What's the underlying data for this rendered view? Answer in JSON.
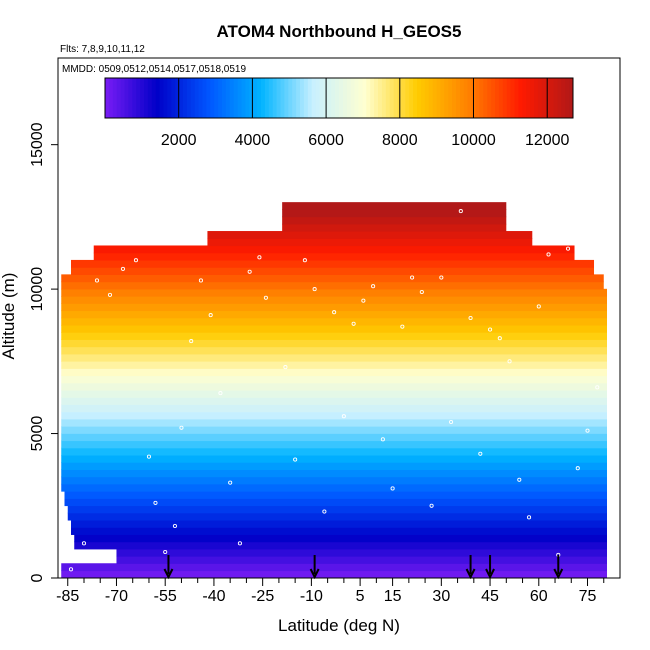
{
  "figure": {
    "title": "ATOM4 Northbound H_GEOS5",
    "flights_note": "Flts: 7,8,9,10,11,12",
    "dates_note": "MMDD: 0509,0512,0514,0517,0518,0519"
  },
  "chart_data": {
    "type": "heatmap",
    "title": "ATOM4 Northbound H_GEOS5",
    "xlabel": "Latitude (deg N)",
    "ylabel": "Altitude (m)",
    "xlim": [
      -88,
      85
    ],
    "ylim": [
      0,
      18000
    ],
    "x_ticks": [
      -85,
      -70,
      -55,
      -40,
      -25,
      -10,
      5,
      15,
      30,
      45,
      60,
      75
    ],
    "x_minor_ticks": [
      -80,
      -75,
      -65,
      -60,
      -50,
      -45,
      -35,
      -30,
      -20,
      -15,
      -5,
      0,
      10,
      20,
      25,
      35,
      40,
      50,
      55,
      65,
      70,
      80
    ],
    "y_ticks": [
      0,
      5000,
      10000,
      15000
    ],
    "colorbar": {
      "min": 0,
      "max": 12700,
      "ticks": [
        2000,
        4000,
        6000,
        8000,
        10000,
        12000
      ],
      "colors": [
        "#7a1cf5",
        "#0000c8",
        "#0056ff",
        "#00b4ff",
        "#c8f0ff",
        "#ffffd0",
        "#ffcc00",
        "#ff8000",
        "#ff1a00",
        "#b01818"
      ]
    },
    "field_extent": [
      {
        "alt": 0,
        "lat_min": -87,
        "lat_max": 81
      },
      {
        "alt": 500,
        "lat_min": -70,
        "lat_max": 81
      },
      {
        "alt": 1000,
        "lat_min": -83,
        "lat_max": 81
      },
      {
        "alt": 1500,
        "lat_min": -84,
        "lat_max": 81
      },
      {
        "alt": 2000,
        "lat_min": -85,
        "lat_max": 81
      },
      {
        "alt": 2500,
        "lat_min": -86,
        "lat_max": 81
      },
      {
        "alt": 3000,
        "lat_min": -87,
        "lat_max": 81
      },
      {
        "alt": 9500,
        "lat_min": -87,
        "lat_max": 81
      },
      {
        "alt": 10000,
        "lat_min": -87,
        "lat_max": 80
      },
      {
        "alt": 10500,
        "lat_min": -84,
        "lat_max": 77
      },
      {
        "alt": 11000,
        "lat_min": -77,
        "lat_max": 71
      },
      {
        "alt": 11500,
        "lat_min": -42,
        "lat_max": 58
      },
      {
        "alt": 12000,
        "lat_min": -19,
        "lat_max": 50
      },
      {
        "alt": 12500,
        "lat_min": -19,
        "lat_max": 50
      }
    ],
    "flight_track_samples": [
      {
        "lat": -84,
        "alt": 300
      },
      {
        "lat": -80,
        "alt": 1200
      },
      {
        "lat": -76,
        "alt": 10300
      },
      {
        "lat": -72,
        "alt": 9800
      },
      {
        "lat": -68,
        "alt": 10700
      },
      {
        "lat": -64,
        "alt": 11000
      },
      {
        "lat": -60,
        "alt": 4200
      },
      {
        "lat": -58,
        "alt": 2600
      },
      {
        "lat": -55,
        "alt": 900
      },
      {
        "lat": -52,
        "alt": 1800
      },
      {
        "lat": -50,
        "alt": 5200
      },
      {
        "lat": -47,
        "alt": 8200
      },
      {
        "lat": -44,
        "alt": 10300
      },
      {
        "lat": -41,
        "alt": 9100
      },
      {
        "lat": -38,
        "alt": 6400
      },
      {
        "lat": -35,
        "alt": 3300
      },
      {
        "lat": -32,
        "alt": 1200
      },
      {
        "lat": -29,
        "alt": 10600
      },
      {
        "lat": -26,
        "alt": 11100
      },
      {
        "lat": -24,
        "alt": 9700
      },
      {
        "lat": -21,
        "alt": 12100
      },
      {
        "lat": -18,
        "alt": 7300
      },
      {
        "lat": -15,
        "alt": 4100
      },
      {
        "lat": -12,
        "alt": 11000
      },
      {
        "lat": -9,
        "alt": 10000
      },
      {
        "lat": -6,
        "alt": 2300
      },
      {
        "lat": -3,
        "alt": 9200
      },
      {
        "lat": 0,
        "alt": 5600
      },
      {
        "lat": 3,
        "alt": 8800
      },
      {
        "lat": 6,
        "alt": 9600
      },
      {
        "lat": 9,
        "alt": 10100
      },
      {
        "lat": 12,
        "alt": 4800
      },
      {
        "lat": 15,
        "alt": 3100
      },
      {
        "lat": 18,
        "alt": 8700
      },
      {
        "lat": 21,
        "alt": 10400
      },
      {
        "lat": 24,
        "alt": 9900
      },
      {
        "lat": 27,
        "alt": 2500
      },
      {
        "lat": 30,
        "alt": 10400
      },
      {
        "lat": 33,
        "alt": 5400
      },
      {
        "lat": 36,
        "alt": 12700
      },
      {
        "lat": 39,
        "alt": 9000
      },
      {
        "lat": 42,
        "alt": 4300
      },
      {
        "lat": 45,
        "alt": 8600
      },
      {
        "lat": 48,
        "alt": 8300
      },
      {
        "lat": 51,
        "alt": 7500
      },
      {
        "lat": 54,
        "alt": 3400
      },
      {
        "lat": 57,
        "alt": 2100
      },
      {
        "lat": 60,
        "alt": 9400
      },
      {
        "lat": 63,
        "alt": 11200
      },
      {
        "lat": 66,
        "alt": 800
      },
      {
        "lat": 69,
        "alt": 11400
      },
      {
        "lat": 72,
        "alt": 3800
      },
      {
        "lat": 75,
        "alt": 5100
      },
      {
        "lat": 78,
        "alt": 6600
      }
    ],
    "arrow_markers_lat": [
      -54,
      -9,
      39,
      45,
      66
    ],
    "grid": false
  }
}
